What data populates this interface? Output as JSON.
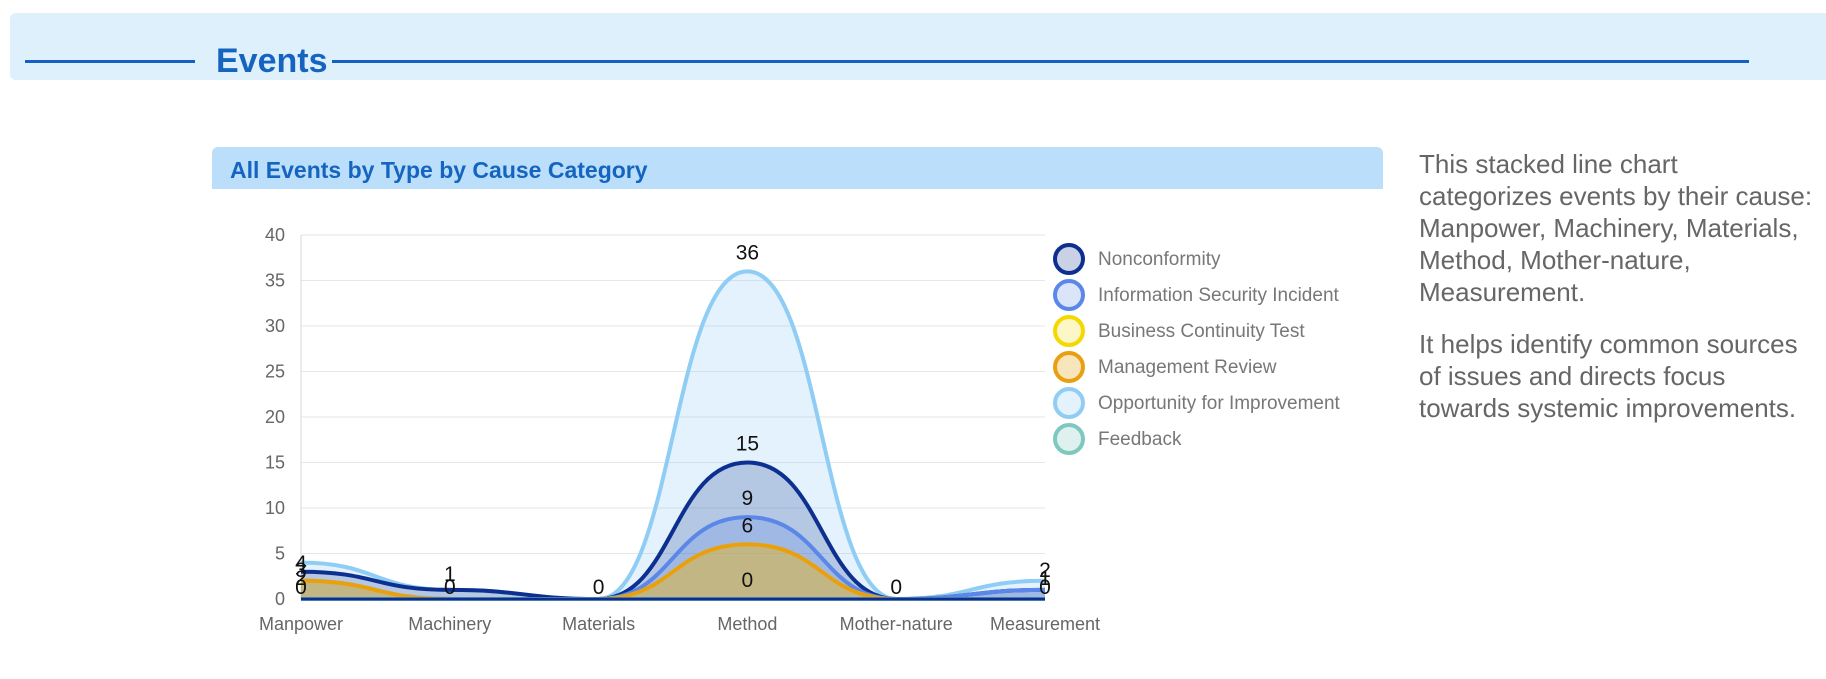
{
  "section": {
    "title": "Events"
  },
  "description": [
    "This stacked line chart categorizes events by their cause: Manpower, Machinery, Materials, Method, Mother-nature, Measurement.",
    "It helps identify common sources of issues and directs focus towards systemic improvements."
  ],
  "chart_data": {
    "type": "area",
    "stacked": true,
    "title": "All Events by Type by Cause Category",
    "xlabel": "",
    "ylabel": "",
    "ylim": [
      0,
      40
    ],
    "yticks": [
      0,
      5,
      10,
      15,
      20,
      25,
      30,
      35,
      40
    ],
    "grid": true,
    "legend_position": "right",
    "categories": [
      "Manpower",
      "Machinery",
      "Materials",
      "Method",
      "Mother-nature",
      "Measurement"
    ],
    "series": [
      {
        "name": "Nonconformity",
        "values": [
          1,
          1,
          0,
          6,
          0,
          0
        ],
        "color": "#0d2f8f",
        "fill": "rgba(13,47,143,0.22)"
      },
      {
        "name": "Information Security Incident",
        "values": [
          0,
          0,
          0,
          3,
          0,
          1
        ],
        "color": "#5b87e8",
        "fill": "rgba(91,135,232,0.22)"
      },
      {
        "name": "Business Continuity Test",
        "values": [
          0,
          0,
          0,
          0,
          0,
          0
        ],
        "color": "#f5d800",
        "fill": "rgba(245,216,0,0.22)"
      },
      {
        "name": "Management Review",
        "values": [
          2,
          0,
          0,
          6,
          0,
          0
        ],
        "color": "#e8a010",
        "fill": "rgba(232,160,16,0.28)"
      },
      {
        "name": "Opportunity for Improvement",
        "values": [
          1,
          0,
          0,
          21,
          0,
          1
        ],
        "color": "#90cdf4",
        "fill": "rgba(144,205,244,0.25)"
      },
      {
        "name": "Feedback",
        "values": [
          0,
          0,
          0,
          0,
          0,
          0
        ],
        "color": "#7ec8c0",
        "fill": "rgba(126,200,192,0.25)"
      }
    ],
    "stacked_totals": {
      "Feedback": [
        0,
        0,
        0,
        0,
        0,
        0
      ],
      "Management Review": [
        2,
        0,
        0,
        6,
        0,
        0
      ],
      "Business Continuity Test": [
        2,
        0,
        0,
        6,
        0,
        0
      ],
      "Information Security Incident": [
        2,
        0,
        0,
        9,
        0,
        1
      ],
      "Nonconformity": [
        3,
        1,
        0,
        15,
        0,
        1
      ],
      "Opportunity for Improvement": [
        4,
        1,
        0,
        36,
        0,
        2
      ]
    },
    "data_labels": [
      {
        "category": "Manpower",
        "values": [
          "4",
          "3",
          "2",
          "0"
        ]
      },
      {
        "category": "Machinery",
        "values": [
          "1",
          "0"
        ]
      },
      {
        "category": "Materials",
        "values": [
          "0"
        ]
      },
      {
        "category": "Method",
        "values": [
          "36",
          "15",
          "9",
          "6",
          "0"
        ]
      },
      {
        "category": "Mother-nature",
        "values": [
          "0"
        ]
      },
      {
        "category": "Measurement",
        "values": [
          "2",
          "1",
          "0"
        ]
      }
    ]
  }
}
